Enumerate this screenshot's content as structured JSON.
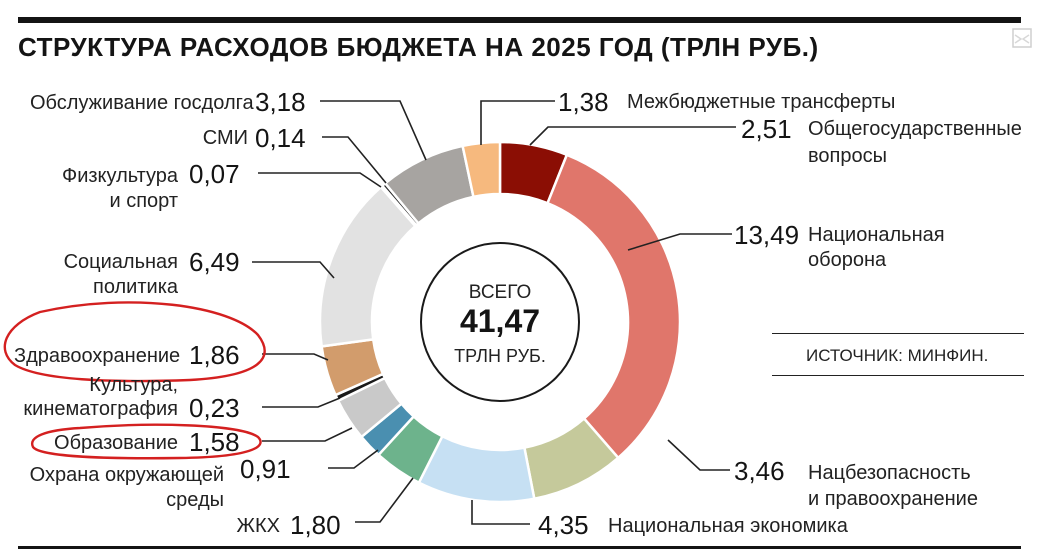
{
  "title": "СТРУКТУРА РАСХОДОВ БЮДЖЕТА НА 2025 ГОД (ТРЛН РУБ.)",
  "source": "ИСТОЧНИК: МИНФИН.",
  "center": {
    "top": "ВСЕГО",
    "total": "41,47",
    "unit": "ТРЛН РУБ."
  },
  "labels": {
    "mezhbyudzhet": {
      "text": "Межбюджетные трансферты",
      "value": "1,38"
    },
    "obshchegos_1": "Общегосударственные",
    "obshchegos_2": "вопросы",
    "obshchegos_value": "2,51",
    "oborona_1": "Национальная",
    "oborona_2": "оборона",
    "oborona_value": "13,49",
    "natsbez_1": "Нацбезопасность",
    "natsbez_2": "и правоохранение",
    "natsbez_value": "3,46",
    "ekonomika": {
      "text": "Национальная экономика",
      "value": "4,35"
    },
    "zhkh": {
      "text": "ЖКХ",
      "value": "1,80"
    },
    "okhrana_1": "Охрана окружающей",
    "okhrana_2": "среды",
    "okhrana_value": "0,91",
    "obrazovanie": {
      "text": "Образование",
      "value": "1,58"
    },
    "kultura_1": "Культура,",
    "kultura_2": "кинематография",
    "kultura_value": "0,23",
    "zdravo": {
      "text": "Здравоохранение",
      "value": "1,86"
    },
    "sotsial_1": "Социальная",
    "sotsial_2": "политика",
    "sotsial_value": "6,49",
    "fizkult_1": "Физкультура",
    "fizkult_2": "и спорт",
    "fizkult_value": "0,07",
    "smi": {
      "text": "СМИ",
      "value": "0,14"
    },
    "gosdolg": {
      "text": "Обслуживание госдолга",
      "value": "3,18"
    }
  },
  "chart_data": {
    "type": "pie",
    "style": "donut",
    "title": "СТРУКТУРА РАСХОДОВ БЮДЖЕТА НА 2025 ГОД (ТРЛН РУБ.)",
    "total": 41.47,
    "unit": "трлн руб.",
    "slices": [
      {
        "label": "Общегосударственные вопросы",
        "value": 2.51,
        "color": "#8b0e04"
      },
      {
        "label": "Национальная оборона",
        "value": 13.49,
        "color": "#e0766b"
      },
      {
        "label": "Нацбезопасность и правоохранение",
        "value": 3.46,
        "color": "#c5c99b"
      },
      {
        "label": "Национальная экономика",
        "value": 4.35,
        "color": "#c6e0f3"
      },
      {
        "label": "ЖКХ",
        "value": 1.8,
        "color": "#6db38c"
      },
      {
        "label": "Охрана окружающей среды",
        "value": 0.91,
        "color": "#4a8fb0"
      },
      {
        "label": "Образование",
        "value": 1.58,
        "color": "#c9c9c9"
      },
      {
        "label": "Культура, кинематография",
        "value": 0.23,
        "color": "#1a1a1a"
      },
      {
        "label": "Здравоохранение",
        "value": 1.86,
        "color": "#d29c6c"
      },
      {
        "label": "Социальная политика",
        "value": 6.49,
        "color": "#e2e2e2"
      },
      {
        "label": "Физкультура и спорт",
        "value": 0.07,
        "color": "#9a9a9a"
      },
      {
        "label": "СМИ",
        "value": 0.14,
        "color": "#2a2a2a"
      },
      {
        "label": "Обслуживание госдолга",
        "value": 3.18,
        "color": "#a7a4a1"
      },
      {
        "label": "Межбюджетные трансферты",
        "value": 1.38,
        "color": "#f6b97e"
      }
    ],
    "highlighted": [
      "Здравоохранение",
      "Образование"
    ],
    "highlight_color": "#d42020"
  }
}
